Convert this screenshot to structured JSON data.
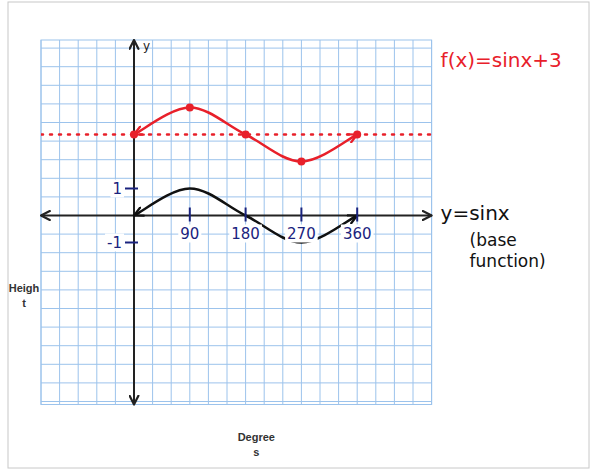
{
  "chart_data": {
    "type": "line",
    "x": [
      0,
      90,
      180,
      270,
      360
    ],
    "xlabel": "Degrees",
    "ylabel": "Height",
    "annotations": [
      "y",
      "(base function)"
    ],
    "xlim": [
      -150,
      480
    ],
    "ylim": [
      -7,
      6.5
    ],
    "xticks": [
      90,
      180,
      270,
      360
    ],
    "yticks": [
      -1,
      1
    ],
    "grid": true,
    "series": [
      {
        "name": "y=sinx",
        "color": "#111111",
        "values": [
          0,
          1,
          0,
          -1,
          0
        ],
        "marker": "none",
        "line_style": "solid"
      },
      {
        "name": "f(x)=sinx+3",
        "color": "#e8202a",
        "values": [
          3,
          4,
          3,
          2,
          3
        ],
        "marker": "circle",
        "line_style": "solid",
        "midline": 3
      }
    ]
  }
}
